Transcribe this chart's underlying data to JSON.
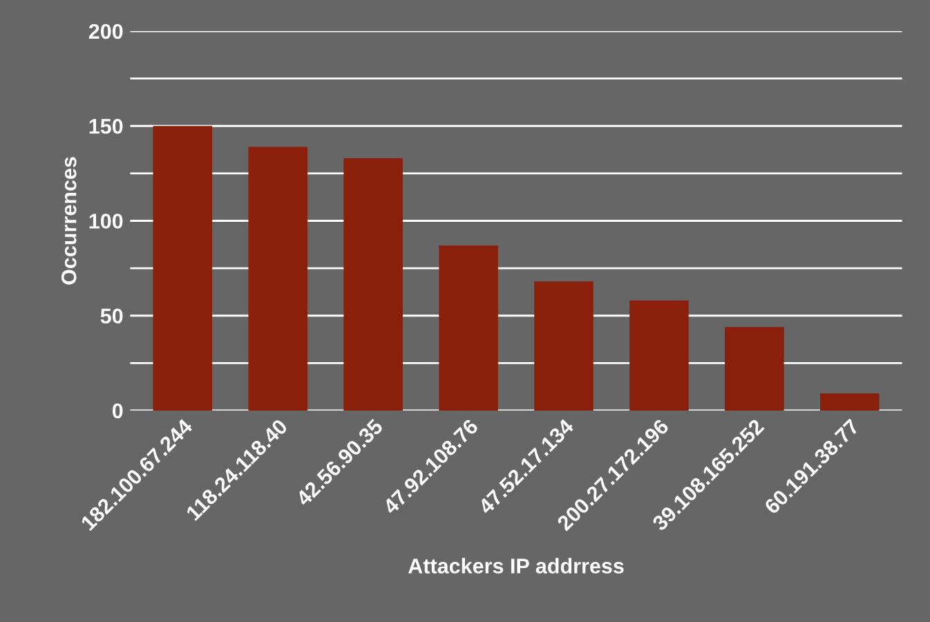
{
  "chart_data": {
    "type": "bar",
    "xlabel": "Attackers IP addrress",
    "ylabel": "Occurrences",
    "categories": [
      "182.100.67.244",
      "118.24.118.40",
      "42.56.90.35",
      "47.92.108.76",
      "47.52.17.134",
      "200.27.172.196",
      "39.108.165.252",
      "60.191.38.77"
    ],
    "values": [
      150,
      139,
      133,
      87,
      68,
      58,
      44,
      9
    ],
    "color": "#8a1f0b",
    "ylim": [
      0,
      200
    ],
    "yticks": [
      0,
      {
        "value": 25,
        "label": null
      },
      50,
      {
        "value": 75,
        "label": null
      },
      100,
      {
        "value": 125,
        "label": null
      },
      150,
      {
        "value": 175,
        "label": null
      },
      200
    ],
    "grid": "y",
    "legend": false
  }
}
